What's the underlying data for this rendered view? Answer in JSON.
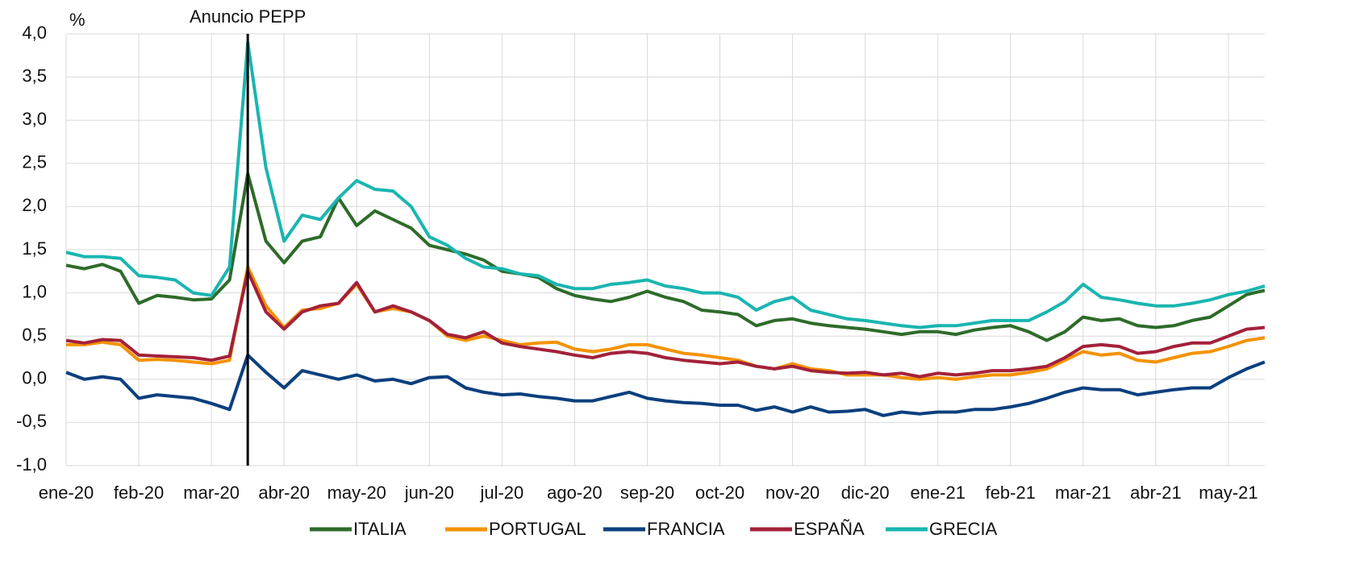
{
  "chart_data": {
    "type": "line",
    "y_unit_label": "%",
    "annotations": [
      {
        "text": "Anuncio PEPP",
        "x_index": 10
      }
    ],
    "categories": [
      "ene-20",
      null,
      null,
      null,
      "feb-20",
      null,
      null,
      null,
      "mar-20",
      null,
      null,
      null,
      "abr-20",
      null,
      null,
      null,
      "may-20",
      null,
      null,
      null,
      "jun-20",
      null,
      null,
      null,
      "jul-20",
      null,
      null,
      null,
      "ago-20",
      null,
      null,
      null,
      "sep-20",
      null,
      null,
      null,
      "oct-20",
      null,
      null,
      null,
      "nov-20",
      null,
      null,
      null,
      "dic-20",
      null,
      null,
      null,
      "ene-21",
      null,
      null,
      null,
      "feb-21",
      null,
      null,
      null,
      "mar-21",
      null,
      null,
      null,
      "abr-21",
      null,
      null,
      null,
      "may-21",
      null,
      null
    ],
    "ylim": [
      -1,
      4
    ],
    "yticks": [
      {
        "value": -1,
        "label": "-1,0"
      },
      {
        "value": -0.5,
        "label": "-0,5"
      },
      {
        "value": 0,
        "label": "0,0"
      },
      {
        "value": 0.5,
        "label": "0,5"
      },
      {
        "value": 1,
        "label": "1,0"
      },
      {
        "value": 1.5,
        "label": "1,5"
      },
      {
        "value": 2,
        "label": "2,0"
      },
      {
        "value": 2.5,
        "label": "2,5"
      },
      {
        "value": 3,
        "label": "3,0"
      },
      {
        "value": 3.5,
        "label": "3,5"
      },
      {
        "value": 4,
        "label": "4,0"
      }
    ],
    "grid": true,
    "legend": "bottom",
    "series": [
      {
        "name": "ITALIA",
        "color": "#2e6b2a",
        "values": [
          1.32,
          1.28,
          1.33,
          1.25,
          0.88,
          0.97,
          0.95,
          0.92,
          0.93,
          1.15,
          2.38,
          1.6,
          1.35,
          1.6,
          1.65,
          2.1,
          1.78,
          1.95,
          1.85,
          1.75,
          1.55,
          1.5,
          1.45,
          1.38,
          1.25,
          1.22,
          1.18,
          1.05,
          0.97,
          0.93,
          0.9,
          0.95,
          1.02,
          0.95,
          0.9,
          0.8,
          0.78,
          0.75,
          0.62,
          0.68,
          0.7,
          0.65,
          0.62,
          0.6,
          0.58,
          0.55,
          0.52,
          0.55,
          0.55,
          0.52,
          0.57,
          0.6,
          0.62,
          0.55,
          0.45,
          0.55,
          0.72,
          0.68,
          0.7,
          0.62,
          0.6,
          0.62,
          0.68,
          0.72,
          0.85,
          0.98,
          1.03
        ]
      },
      {
        "name": "PORTUGAL",
        "color": "#f39200",
        "values": [
          0.4,
          0.4,
          0.43,
          0.4,
          0.22,
          0.23,
          0.22,
          0.2,
          0.18,
          0.22,
          1.3,
          0.85,
          0.6,
          0.8,
          0.82,
          0.88,
          1.1,
          0.78,
          0.82,
          0.78,
          0.68,
          0.5,
          0.45,
          0.5,
          0.45,
          0.4,
          0.42,
          0.43,
          0.35,
          0.32,
          0.35,
          0.4,
          0.4,
          0.35,
          0.3,
          0.28,
          0.25,
          0.22,
          0.15,
          0.12,
          0.18,
          0.12,
          0.1,
          0.05,
          0.05,
          0.05,
          0.02,
          0.0,
          0.02,
          0.0,
          0.03,
          0.05,
          0.05,
          0.08,
          0.12,
          0.22,
          0.32,
          0.28,
          0.3,
          0.22,
          0.2,
          0.25,
          0.3,
          0.32,
          0.38,
          0.45,
          0.48
        ]
      },
      {
        "name": "FRANCIA",
        "color": "#0b3f7e",
        "values": [
          0.08,
          0.0,
          0.03,
          0.0,
          -0.22,
          -0.18,
          -0.2,
          -0.22,
          -0.28,
          -0.35,
          0.28,
          0.08,
          -0.1,
          0.1,
          0.05,
          0.0,
          0.05,
          -0.02,
          0.0,
          -0.05,
          0.02,
          0.03,
          -0.1,
          -0.15,
          -0.18,
          -0.17,
          -0.2,
          -0.22,
          -0.25,
          -0.25,
          -0.2,
          -0.15,
          -0.22,
          -0.25,
          -0.27,
          -0.28,
          -0.3,
          -0.3,
          -0.36,
          -0.32,
          -0.38,
          -0.32,
          -0.38,
          -0.37,
          -0.35,
          -0.42,
          -0.38,
          -0.4,
          -0.38,
          -0.38,
          -0.35,
          -0.35,
          -0.32,
          -0.28,
          -0.22,
          -0.15,
          -0.1,
          -0.12,
          -0.12,
          -0.18,
          -0.15,
          -0.12,
          -0.1,
          -0.1,
          0.02,
          0.12,
          0.2
        ]
      },
      {
        "name": "ESPAÑA",
        "color": "#a3213a",
        "values": [
          0.45,
          0.42,
          0.46,
          0.45,
          0.28,
          0.27,
          0.26,
          0.25,
          0.22,
          0.27,
          1.25,
          0.78,
          0.58,
          0.78,
          0.85,
          0.88,
          1.12,
          0.78,
          0.85,
          0.78,
          0.68,
          0.52,
          0.48,
          0.55,
          0.42,
          0.38,
          0.35,
          0.32,
          0.28,
          0.25,
          0.3,
          0.32,
          0.3,
          0.25,
          0.22,
          0.2,
          0.18,
          0.2,
          0.15,
          0.12,
          0.15,
          0.1,
          0.08,
          0.07,
          0.08,
          0.05,
          0.07,
          0.03,
          0.07,
          0.05,
          0.07,
          0.1,
          0.1,
          0.12,
          0.15,
          0.25,
          0.38,
          0.4,
          0.38,
          0.3,
          0.32,
          0.38,
          0.42,
          0.42,
          0.5,
          0.58,
          0.6
        ]
      },
      {
        "name": "GRECIA",
        "color": "#1ab5b0",
        "values": [
          1.47,
          1.42,
          1.42,
          1.4,
          1.2,
          1.18,
          1.15,
          1.0,
          0.97,
          1.3,
          3.9,
          2.45,
          1.6,
          1.9,
          1.85,
          2.1,
          2.3,
          2.2,
          2.18,
          2.0,
          1.65,
          1.55,
          1.4,
          1.3,
          1.28,
          1.22,
          1.2,
          1.1,
          1.05,
          1.05,
          1.1,
          1.12,
          1.15,
          1.08,
          1.05,
          1.0,
          1.0,
          0.95,
          0.8,
          0.9,
          0.95,
          0.8,
          0.75,
          0.7,
          0.68,
          0.65,
          0.62,
          0.6,
          0.62,
          0.62,
          0.65,
          0.68,
          0.68,
          0.68,
          0.78,
          0.9,
          1.1,
          0.95,
          0.92,
          0.88,
          0.85,
          0.85,
          0.88,
          0.92,
          0.98,
          1.02,
          1.08
        ]
      }
    ]
  }
}
